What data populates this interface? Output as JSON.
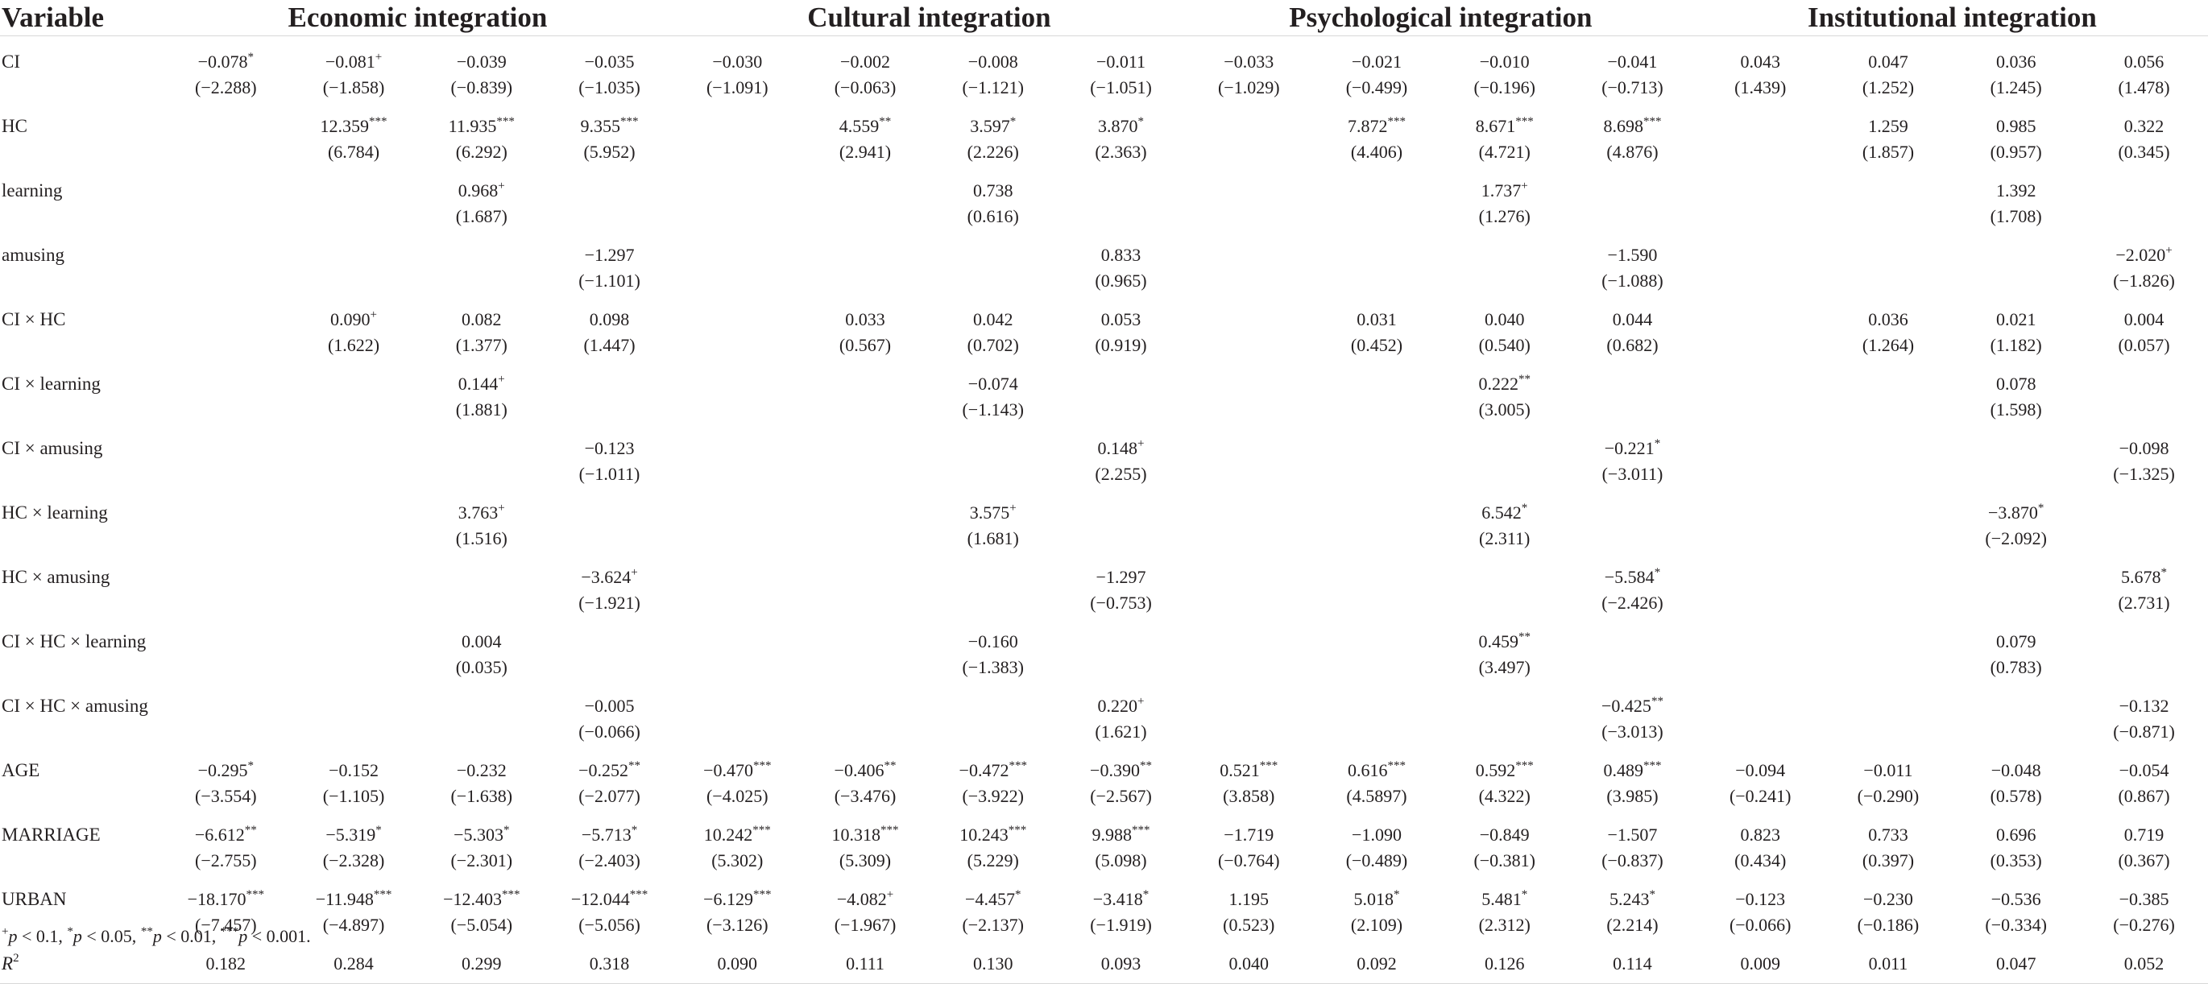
{
  "header": {
    "variable": "Variable",
    "groups": [
      "Economic integration",
      "Cultural integration",
      "Psychological integration",
      "Institutional integration"
    ]
  },
  "rows": [
    {
      "label": "CI",
      "cells": [
        [
          "−0.078",
          "*",
          "(−2.288)"
        ],
        [
          "−0.081",
          "+",
          "(−1.858)"
        ],
        [
          "−0.039",
          "",
          "(−0.839)"
        ],
        [
          "−0.035",
          "",
          "(−1.035)"
        ],
        [
          "−0.030",
          "",
          "(−1.091)"
        ],
        [
          "−0.002",
          "",
          "(−0.063)"
        ],
        [
          "−0.008",
          "",
          "(−1.121)"
        ],
        [
          "−0.011",
          "",
          "(−1.051)"
        ],
        [
          "−0.033",
          "",
          "(−1.029)"
        ],
        [
          "−0.021",
          "",
          "(−0.499)"
        ],
        [
          "−0.010",
          "",
          "(−0.196)"
        ],
        [
          "−0.041",
          "",
          "(−0.713)"
        ],
        [
          "0.043",
          "",
          "(1.439)"
        ],
        [
          "0.047",
          "",
          "(1.252)"
        ],
        [
          "0.036",
          "",
          "(1.245)"
        ],
        [
          "0.056",
          "",
          "(1.478)"
        ]
      ]
    },
    {
      "label": "HC",
      "cells": [
        [
          "",
          "",
          ""
        ],
        [
          "12.359",
          "***",
          "(6.784)"
        ],
        [
          "11.935",
          "***",
          "(6.292)"
        ],
        [
          "9.355",
          "***",
          "(5.952)"
        ],
        [
          "",
          "",
          ""
        ],
        [
          "4.559",
          "**",
          "(2.941)"
        ],
        [
          "3.597",
          "*",
          "(2.226)"
        ],
        [
          "3.870",
          "*",
          "(2.363)"
        ],
        [
          "",
          "",
          ""
        ],
        [
          "7.872",
          "***",
          "(4.406)"
        ],
        [
          "8.671",
          "***",
          "(4.721)"
        ],
        [
          "8.698",
          "***",
          "(4.876)"
        ],
        [
          "",
          "",
          ""
        ],
        [
          "1.259",
          "",
          "(1.857)"
        ],
        [
          "0.985",
          "",
          "(0.957)"
        ],
        [
          "0.322",
          "",
          "(0.345)"
        ]
      ]
    },
    {
      "label": "learning",
      "cells": [
        [
          "",
          "",
          ""
        ],
        [
          "",
          "",
          ""
        ],
        [
          "0.968",
          "+",
          "(1.687)"
        ],
        [
          "",
          "",
          ""
        ],
        [
          "",
          "",
          ""
        ],
        [
          "",
          "",
          ""
        ],
        [
          "0.738",
          "",
          "(0.616)"
        ],
        [
          "",
          "",
          ""
        ],
        [
          "",
          "",
          ""
        ],
        [
          "",
          "",
          ""
        ],
        [
          "1.737",
          "+",
          "(1.276)"
        ],
        [
          "",
          "",
          ""
        ],
        [
          "",
          "",
          ""
        ],
        [
          "",
          "",
          ""
        ],
        [
          "1.392",
          "",
          "(1.708)"
        ],
        [
          "",
          "",
          ""
        ]
      ]
    },
    {
      "label": "amusing",
      "cells": [
        [
          "",
          "",
          ""
        ],
        [
          "",
          "",
          ""
        ],
        [
          "",
          "",
          ""
        ],
        [
          "−1.297",
          "",
          "(−1.101)"
        ],
        [
          "",
          "",
          ""
        ],
        [
          "",
          "",
          ""
        ],
        [
          "",
          "",
          ""
        ],
        [
          "0.833",
          "",
          "(0.965)"
        ],
        [
          "",
          "",
          ""
        ],
        [
          "",
          "",
          ""
        ],
        [
          "",
          "",
          ""
        ],
        [
          "−1.590",
          "",
          "(−1.088)"
        ],
        [
          "",
          "",
          ""
        ],
        [
          "",
          "",
          ""
        ],
        [
          "",
          "",
          ""
        ],
        [
          "−2.020",
          "+",
          "(−1.826)"
        ]
      ]
    },
    {
      "label": "CI × HC",
      "cells": [
        [
          "",
          "",
          ""
        ],
        [
          "0.090",
          "+",
          "(1.622)"
        ],
        [
          "0.082",
          "",
          "(1.377)"
        ],
        [
          "0.098",
          "",
          "(1.447)"
        ],
        [
          "",
          "",
          ""
        ],
        [
          "0.033",
          "",
          "(0.567)"
        ],
        [
          "0.042",
          "",
          "(0.702)"
        ],
        [
          "0.053",
          "",
          "(0.919)"
        ],
        [
          "",
          "",
          ""
        ],
        [
          "0.031",
          "",
          "(0.452)"
        ],
        [
          "0.040",
          "",
          "(0.540)"
        ],
        [
          "0.044",
          "",
          "(0.682)"
        ],
        [
          "",
          "",
          ""
        ],
        [
          "0.036",
          "",
          "(1.264)"
        ],
        [
          "0.021",
          "",
          "(1.182)"
        ],
        [
          "0.004",
          "",
          "(0.057)"
        ]
      ]
    },
    {
      "label": "CI × learning",
      "cells": [
        [
          "",
          "",
          ""
        ],
        [
          "",
          "",
          ""
        ],
        [
          "0.144",
          "+",
          "(1.881)"
        ],
        [
          "",
          "",
          ""
        ],
        [
          "",
          "",
          ""
        ],
        [
          "",
          "",
          ""
        ],
        [
          "−0.074",
          "",
          "(−1.143)"
        ],
        [
          "",
          "",
          ""
        ],
        [
          "",
          "",
          ""
        ],
        [
          "",
          "",
          ""
        ],
        [
          "0.222",
          "**",
          "(3.005)"
        ],
        [
          "",
          "",
          ""
        ],
        [
          "",
          "",
          ""
        ],
        [
          "",
          "",
          ""
        ],
        [
          "0.078",
          "",
          "(1.598)"
        ],
        [
          "",
          "",
          ""
        ]
      ]
    },
    {
      "label": "CI × amusing",
      "cells": [
        [
          "",
          "",
          ""
        ],
        [
          "",
          "",
          ""
        ],
        [
          "",
          "",
          ""
        ],
        [
          "−0.123",
          "",
          "(−1.011)"
        ],
        [
          "",
          "",
          ""
        ],
        [
          "",
          "",
          ""
        ],
        [
          "",
          "",
          ""
        ],
        [
          "0.148",
          "+",
          "(2.255)"
        ],
        [
          "",
          "",
          ""
        ],
        [
          "",
          "",
          ""
        ],
        [
          "",
          "",
          ""
        ],
        [
          "−0.221",
          "*",
          "(−3.011)"
        ],
        [
          "",
          "",
          ""
        ],
        [
          "",
          "",
          ""
        ],
        [
          "",
          "",
          ""
        ],
        [
          "−0.098",
          "",
          "(−1.325)"
        ]
      ]
    },
    {
      "label": "HC × learning",
      "cells": [
        [
          "",
          "",
          ""
        ],
        [
          "",
          "",
          ""
        ],
        [
          "3.763",
          "+",
          "(1.516)"
        ],
        [
          "",
          "",
          ""
        ],
        [
          "",
          "",
          ""
        ],
        [
          "",
          "",
          ""
        ],
        [
          "3.575",
          "+",
          "(1.681)"
        ],
        [
          "",
          "",
          ""
        ],
        [
          "",
          "",
          ""
        ],
        [
          "",
          "",
          ""
        ],
        [
          "6.542",
          "*",
          "(2.311)"
        ],
        [
          "",
          "",
          ""
        ],
        [
          "",
          "",
          ""
        ],
        [
          "",
          "",
          ""
        ],
        [
          "−3.870",
          "*",
          "(−2.092)"
        ],
        [
          "",
          "",
          ""
        ]
      ]
    },
    {
      "label": "HC × amusing",
      "cells": [
        [
          "",
          "",
          ""
        ],
        [
          "",
          "",
          ""
        ],
        [
          "",
          "",
          ""
        ],
        [
          "−3.624",
          "+",
          "(−1.921)"
        ],
        [
          "",
          "",
          ""
        ],
        [
          "",
          "",
          ""
        ],
        [
          "",
          "",
          ""
        ],
        [
          "−1.297",
          "",
          "(−0.753)"
        ],
        [
          "",
          "",
          ""
        ],
        [
          "",
          "",
          ""
        ],
        [
          "",
          "",
          ""
        ],
        [
          "−5.584",
          "*",
          "(−2.426)"
        ],
        [
          "",
          "",
          ""
        ],
        [
          "",
          "",
          ""
        ],
        [
          "",
          "",
          ""
        ],
        [
          "5.678",
          "*",
          "(2.731)"
        ]
      ]
    },
    {
      "label": "CI × HC × learning",
      "cells": [
        [
          "",
          "",
          ""
        ],
        [
          "",
          "",
          ""
        ],
        [
          "0.004",
          "",
          "(0.035)"
        ],
        [
          "",
          "",
          ""
        ],
        [
          "",
          "",
          ""
        ],
        [
          "",
          "",
          ""
        ],
        [
          "−0.160",
          "",
          "(−1.383)"
        ],
        [
          "",
          "",
          ""
        ],
        [
          "",
          "",
          ""
        ],
        [
          "",
          "",
          ""
        ],
        [
          "0.459",
          "**",
          "(3.497)"
        ],
        [
          "",
          "",
          ""
        ],
        [
          "",
          "",
          ""
        ],
        [
          "",
          "",
          ""
        ],
        [
          "0.079",
          "",
          "(0.783)"
        ],
        [
          "",
          "",
          ""
        ]
      ]
    },
    {
      "label": "CI × HC × amusing",
      "cells": [
        [
          "",
          "",
          ""
        ],
        [
          "",
          "",
          ""
        ],
        [
          "",
          "",
          ""
        ],
        [
          "−0.005",
          "",
          "(−0.066)"
        ],
        [
          "",
          "",
          ""
        ],
        [
          "",
          "",
          ""
        ],
        [
          "",
          "",
          ""
        ],
        [
          "0.220",
          "+",
          "(1.621)"
        ],
        [
          "",
          "",
          ""
        ],
        [
          "",
          "",
          ""
        ],
        [
          "",
          "",
          ""
        ],
        [
          "−0.425",
          "**",
          "(−3.013)"
        ],
        [
          "",
          "",
          ""
        ],
        [
          "",
          "",
          ""
        ],
        [
          "",
          "",
          ""
        ],
        [
          "−0.132",
          "",
          "(−0.871)"
        ]
      ]
    },
    {
      "label": "AGE",
      "cells": [
        [
          "−0.295",
          "*",
          "(−3.554)"
        ],
        [
          "−0.152",
          "",
          "(−1.105)"
        ],
        [
          "−0.232",
          "",
          "(−1.638)"
        ],
        [
          "−0.252",
          "**",
          "(−2.077)"
        ],
        [
          "−0.470",
          "***",
          "(−4.025)"
        ],
        [
          "−0.406",
          "**",
          "(−3.476)"
        ],
        [
          "−0.472",
          "***",
          "(−3.922)"
        ],
        [
          "−0.390",
          "**",
          "(−2.567)"
        ],
        [
          "0.521",
          "***",
          "(3.858)"
        ],
        [
          "0.616",
          "***",
          "(4.5897)"
        ],
        [
          "0.592",
          "***",
          "(4.322)"
        ],
        [
          "0.489",
          "***",
          "(3.985)"
        ],
        [
          "−0.094",
          "",
          "(−0.241)"
        ],
        [
          "−0.011",
          "",
          "(−0.290)"
        ],
        [
          "−0.048",
          "",
          "(0.578)"
        ],
        [
          "−0.054",
          "",
          "(0.867)"
        ]
      ]
    },
    {
      "label": "MARRIAGE",
      "cells": [
        [
          "−6.612",
          "**",
          "(−2.755)"
        ],
        [
          "−5.319",
          "*",
          "(−2.328)"
        ],
        [
          "−5.303",
          "*",
          "(−2.301)"
        ],
        [
          "−5.713",
          "*",
          "(−2.403)"
        ],
        [
          "10.242",
          "***",
          "(5.302)"
        ],
        [
          "10.318",
          "***",
          "(5.309)"
        ],
        [
          "10.243",
          "***",
          "(5.229)"
        ],
        [
          "9.988",
          "***",
          "(5.098)"
        ],
        [
          "−1.719",
          "",
          "(−0.764)"
        ],
        [
          "−1.090",
          "",
          "(−0.489)"
        ],
        [
          "−0.849",
          "",
          "(−0.381)"
        ],
        [
          "−1.507",
          "",
          "(−0.837)"
        ],
        [
          "0.823",
          "",
          "(0.434)"
        ],
        [
          "0.733",
          "",
          "(0.397)"
        ],
        [
          "0.696",
          "",
          "(0.353)"
        ],
        [
          "0.719",
          "",
          "(0.367)"
        ]
      ]
    },
    {
      "label": "URBAN",
      "cells": [
        [
          "−18.170",
          "***",
          "(−7.457)"
        ],
        [
          "−11.948",
          "***",
          "(−4.897)"
        ],
        [
          "−12.403",
          "***",
          "(−5.054)"
        ],
        [
          "−12.044",
          "***",
          "(−5.056)"
        ],
        [
          "−6.129",
          "***",
          "(−3.126)"
        ],
        [
          "−4.082",
          "+",
          "(−1.967)"
        ],
        [
          "−4.457",
          "*",
          "(−2.137)"
        ],
        [
          "−3.418",
          "*",
          "(−1.919)"
        ],
        [
          "1.195",
          "",
          "(0.523)"
        ],
        [
          "5.018",
          "*",
          "(2.109)"
        ],
        [
          "5.481",
          "*",
          "(2.312)"
        ],
        [
          "5.243",
          "*",
          "(2.214)"
        ],
        [
          "−0.123",
          "",
          "(−0.066)"
        ],
        [
          "−0.230",
          "",
          "(−0.186)"
        ],
        [
          "−0.536",
          "",
          "(−0.334)"
        ],
        [
          "−0.385",
          "",
          "(−0.276)"
        ]
      ]
    }
  ],
  "r2": {
    "label": "R",
    "sup": "2",
    "values": [
      "0.182",
      "0.284",
      "0.299",
      "0.318",
      "0.090",
      "0.111",
      "0.130",
      "0.093",
      "0.040",
      "0.092",
      "0.126",
      "0.114",
      "0.009",
      "0.011",
      "0.047",
      "0.052"
    ]
  },
  "note": {
    "parts": [
      {
        "sup": "+"
      },
      {
        "i": "p"
      },
      {
        "t": " < 0.1, "
      },
      {
        "sup": "*"
      },
      {
        "i": "p"
      },
      {
        "t": " < 0.05, "
      },
      {
        "sup": "**"
      },
      {
        "i": "p"
      },
      {
        "t": " < 0.01, "
      },
      {
        "sup": "***"
      },
      {
        "i": "p"
      },
      {
        "t": " < 0.001."
      }
    ]
  }
}
